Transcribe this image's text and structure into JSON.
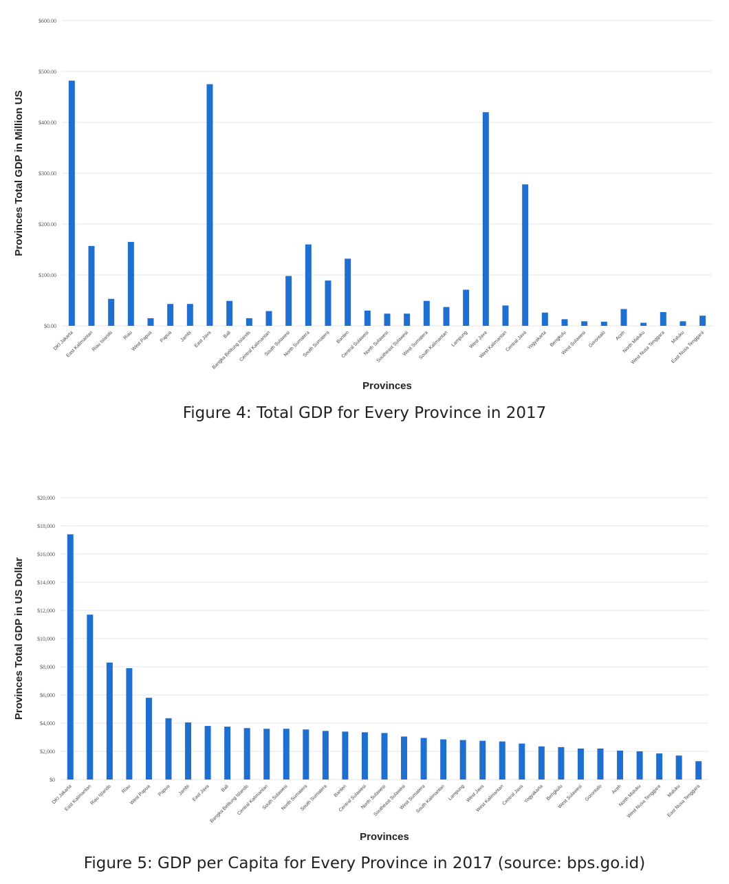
{
  "charts": [
    {
      "id": "fig4",
      "caption": "Figure 4: Total GDP for Every Province in 2017",
      "chart_data": {
        "type": "bar",
        "xlabel": "Provinces",
        "ylabel": "Provinces Total GDP in Million US",
        "ylim": [
          0,
          600
        ],
        "yticks": [
          "$0.00",
          "$100.00",
          "$200.00",
          "$300.00",
          "$400.00",
          "$500.00",
          "$600.00"
        ],
        "grid": true,
        "categories": [
          "DKI Jakarta",
          "East Kalimantan",
          "Riau Islands",
          "Riau",
          "West Papua",
          "Papua",
          "Jambi",
          "East Java",
          "Bali",
          "Bangka Belitung Islands",
          "Central Kalimantan",
          "South Sulawesi",
          "North Sumatera",
          "South Sumatera",
          "Banten",
          "Central Sulawesi",
          "North Sulawesi",
          "Southeast Sulawesi",
          "West Sumatera",
          "South Kalimantan",
          "Lampung",
          "West Java",
          "West Kalimantan",
          "Central Java",
          "Yogyakarta",
          "Bengkulu",
          "West Sulawesi",
          "Gorontalo",
          "Aceh",
          "North Maluku",
          "West Nusa Tenggara",
          "Maluku",
          "East Nusa Tenggara"
        ],
        "values": [
          482,
          157,
          53,
          165,
          15,
          43,
          43,
          475,
          49,
          15,
          29,
          98,
          160,
          89,
          132,
          30,
          24,
          24,
          49,
          37,
          71,
          420,
          40,
          278,
          26,
          13,
          9,
          8,
          33,
          6,
          27,
          9,
          20
        ]
      }
    },
    {
      "id": "fig5",
      "caption": "Figure 5: GDP per Capita for Every Province in 2017 (source: bps.go.id)",
      "chart_data": {
        "type": "bar",
        "xlabel": "Provinces",
        "ylabel": "Provinces Total GDP in US Dollar",
        "ylim": [
          0,
          20000
        ],
        "yticks": [
          "$0",
          "$2,000",
          "$4,000",
          "$6,000",
          "$8,000",
          "$10,000",
          "$12,000",
          "$14,000",
          "$16,000",
          "$18,000",
          "$20,000"
        ],
        "grid": true,
        "categories": [
          "DKI Jakarta",
          "East Kalimantan",
          "Riau Islands",
          "Riau",
          "West Papua",
          "Papua",
          "Jambi",
          "East Java",
          "Bali",
          "Bangka Belitung Islands",
          "Central Kalimantan",
          "South Sulawesi",
          "North Sumatera",
          "South Sumatera",
          "Banten",
          "Central Sulawesi",
          "North Sulawesi",
          "Southeast Sulawesi",
          "West Sumatera",
          "South Kalimantan",
          "Lampung",
          "West Java",
          "West Kalimantan",
          "Central Java",
          "Yogyakarta",
          "Bengkulu",
          "West Sulawesi",
          "Gorontalo",
          "Aceh",
          "North Maluku",
          "West Nusa Tenggara",
          "Maluku",
          "East Nusa Tenggara"
        ],
        "values": [
          17400,
          11700,
          8300,
          7900,
          5800,
          4350,
          4050,
          3800,
          3750,
          3650,
          3600,
          3600,
          3550,
          3450,
          3400,
          3350,
          3300,
          3050,
          2950,
          2850,
          2800,
          2750,
          2700,
          2550,
          2350,
          2300,
          2200,
          2200,
          2050,
          2000,
          1850,
          1700,
          1300
        ]
      }
    }
  ]
}
